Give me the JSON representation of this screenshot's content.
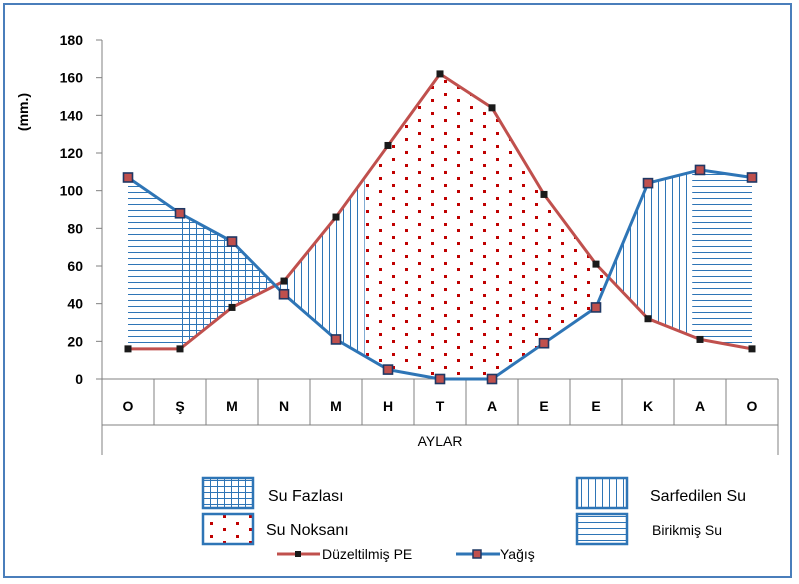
{
  "chart_data": {
    "type": "line",
    "ylabel": "(mm.)",
    "xlabel": "AYLAR",
    "ylim": [
      0,
      180
    ],
    "yticks": [
      0,
      20,
      40,
      60,
      80,
      100,
      120,
      140,
      160,
      180
    ],
    "categories": [
      "O",
      "Ş",
      "M",
      "N",
      "M",
      "H",
      "T",
      "A",
      "E",
      "E",
      "K",
      "A",
      "O"
    ],
    "series": [
      {
        "name": "Düzeltilmiş PE",
        "color": "#c0504d",
        "values": [
          16,
          16,
          38,
          52,
          86,
          124,
          162,
          144,
          98,
          61,
          32,
          21,
          16
        ]
      },
      {
        "name": "Yağış",
        "color": "#2e75b6",
        "values": [
          107,
          88,
          73,
          45,
          21,
          5,
          0,
          0,
          19,
          38,
          104,
          111,
          107
        ]
      }
    ],
    "areas": [
      {
        "label": "Su Fazlası",
        "pattern": "grid"
      },
      {
        "label": "Sarfedilen Su",
        "pattern": "vertical"
      },
      {
        "label": "Su Noksanı",
        "pattern": "dots"
      },
      {
        "label": "Birikmiş Su",
        "pattern": "horizontal"
      }
    ],
    "grid": false
  }
}
